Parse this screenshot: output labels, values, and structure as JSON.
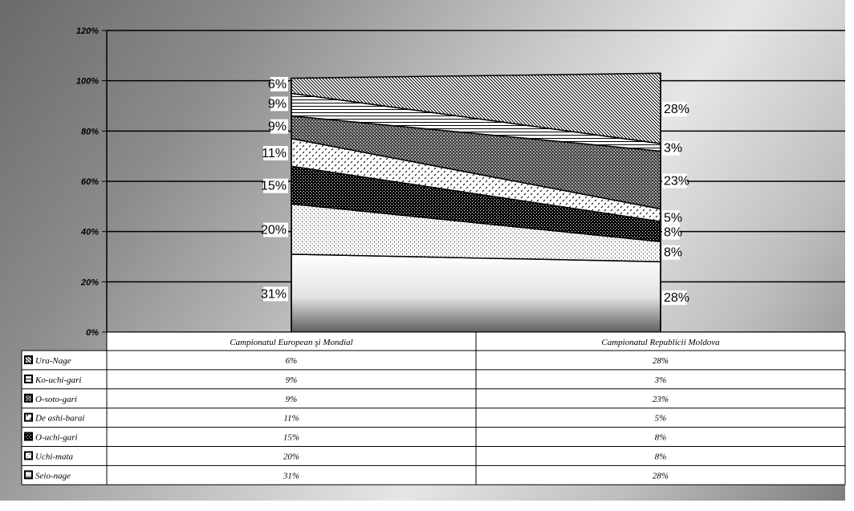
{
  "chart_data": {
    "type": "area",
    "categories": [
      "Campionatul European şi Mondial",
      "Campionatul Republicii Moldova"
    ],
    "series": [
      {
        "name": "Seio-nage",
        "values": [
          31,
          28
        ],
        "labels": [
          "31%",
          "28%"
        ],
        "pattern": "gradient"
      },
      {
        "name": "Uchi-mata",
        "values": [
          20,
          8
        ],
        "labels": [
          "20%",
          "8%"
        ],
        "pattern": "dots"
      },
      {
        "name": "O-uchi-gari",
        "values": [
          15,
          8
        ],
        "labels": [
          "15%",
          "8%"
        ],
        "pattern": "dark-check"
      },
      {
        "name": "De ashi-barai",
        "values": [
          11,
          5
        ],
        "labels": [
          "11%",
          "5%"
        ],
        "pattern": "diagonal-dashes"
      },
      {
        "name": "O-soto-gari",
        "values": [
          9,
          23
        ],
        "labels": [
          "9%",
          "23%"
        ],
        "pattern": "grey-check"
      },
      {
        "name": "Ko-uchi-gari",
        "values": [
          9,
          3
        ],
        "labels": [
          "9%",
          "3%"
        ],
        "pattern": "horizontal-lines"
      },
      {
        "name": "Ura-Nage",
        "values": [
          6,
          28
        ],
        "labels": [
          "6%",
          "28%"
        ],
        "pattern": "diagonal-lines"
      }
    ],
    "ylim": [
      0,
      120
    ],
    "y_ticks": [
      "0%",
      "20%",
      "40%",
      "60%",
      "80%",
      "100%",
      "120%"
    ],
    "grid": true,
    "legend": "data-table-below"
  }
}
